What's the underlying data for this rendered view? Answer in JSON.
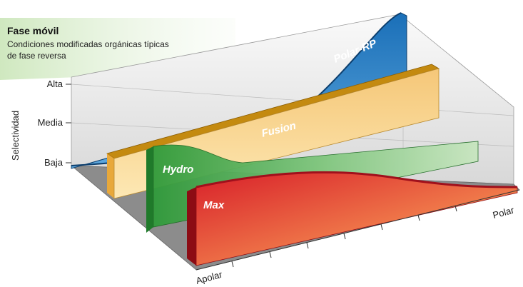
{
  "legend": {
    "title": "Fase móvil",
    "lines": [
      "Condiciones modificadas orgánicas típicas",
      "de fase reversa"
    ]
  },
  "y_axis": {
    "label": "Selectividad",
    "ticks": [
      "Alta",
      "Media",
      "Baja"
    ]
  },
  "x_axis": {
    "labels": [
      "Apolar",
      "Polar"
    ]
  },
  "ribbons": [
    {
      "label": "Polar-RP"
    },
    {
      "label": "Fusion"
    },
    {
      "label": "Hydro"
    },
    {
      "label": "Max"
    }
  ]
}
